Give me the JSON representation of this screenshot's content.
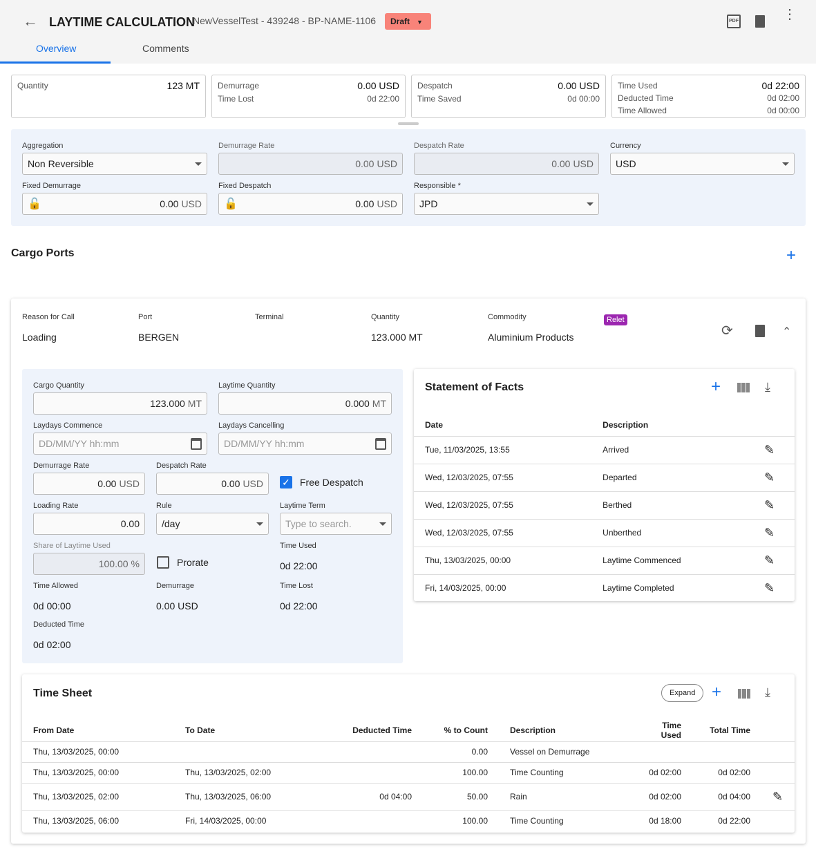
{
  "header": {
    "title": "LAYTIME CALCULATION",
    "subtitle": "NewVesselTest - 439248 - BP-NAME-1106",
    "status": "Draft"
  },
  "tabs": [
    {
      "label": "Overview",
      "active": true
    },
    {
      "label": "Comments"
    }
  ],
  "summary": {
    "quantity": {
      "label": "Quantity",
      "value": "123 MT"
    },
    "demurrage": {
      "label": "Demurrage",
      "value": "0.00 USD",
      "sub_label": "Time Lost",
      "sub_value": "0d 22:00"
    },
    "despatch": {
      "label": "Despatch",
      "value": "0.00 USD",
      "sub_label": "Time Saved",
      "sub_value": "0d 00:00"
    },
    "time": {
      "label": "Time Used",
      "value": "0d 22:00",
      "l2": "Deducted Time",
      "v2": "0d 02:00",
      "l3": "Time Allowed",
      "v3": "0d 00:00"
    }
  },
  "settings": {
    "aggregation_label": "Aggregation",
    "aggregation": "Non Reversible",
    "demurrage_rate_label": "Demurrage Rate",
    "demurrage_rate": "0.00",
    "despatch_rate_label": "Despatch Rate",
    "despatch_rate": "0.00",
    "currency_label": "Currency",
    "currency": "USD",
    "fixed_demurrage_label": "Fixed Demurrage",
    "fixed_demurrage": "0.00",
    "fixed_despatch_label": "Fixed Despatch",
    "fixed_despatch": "0.00",
    "responsible_label": "Responsible *",
    "responsible": "JPD",
    "unit": "USD"
  },
  "cargo_ports": {
    "title": "Cargo Ports",
    "port": {
      "reason_label": "Reason for Call",
      "reason": "Loading",
      "port_label": "Port",
      "port": "BERGEN",
      "terminal_label": "Terminal",
      "quantity_label": "Quantity",
      "quantity": "123.000 MT",
      "commodity_label": "Commodity",
      "commodity": "Aluminium Products",
      "tag": "Relet"
    },
    "form": {
      "cargo_qty_label": "Cargo Quantity",
      "cargo_qty": "123.000",
      "laytime_qty_label": "Laytime Quantity",
      "laytime_qty": "0.000",
      "mt": "MT",
      "usd": "USD",
      "laydays_commence_label": "Laydays Commence",
      "laydays_cancelling_label": "Laydays Cancelling",
      "date_placeholder": "DD/MM/YY hh:mm",
      "dem_rate_label": "Demurrage Rate",
      "dem_rate": "0.00",
      "desp_rate_label": "Despatch Rate",
      "desp_rate": "0.00",
      "free_despatch": "Free Despatch",
      "free_despatch_checked": true,
      "loading_rate_label": "Loading Rate",
      "loading_rate": "0.00",
      "rule_label": "Rule",
      "rule": "/day",
      "laytime_term_label": "Laytime Term",
      "laytime_term_placeholder": "Type to search.",
      "share_label": "Share of Laytime Used",
      "share": "100.00",
      "pct": "%",
      "prorate": "Prorate",
      "prorate_checked": false,
      "time_used_label": "Time Used",
      "time_used": "0d 22:00",
      "time_allowed_label": "Time Allowed",
      "time_allowed": "0d 00:00",
      "demurrage_label": "Demurrage",
      "demurrage": "0.00 USD",
      "time_lost_label": "Time Lost",
      "time_lost": "0d 22:00",
      "deducted_label": "Deducted Time",
      "deducted": "0d 02:00"
    }
  },
  "sof": {
    "title": "Statement of Facts",
    "columns": [
      "Date",
      "Description"
    ],
    "rows": [
      [
        "Tue, 11/03/2025, 13:55",
        "Arrived"
      ],
      [
        "Wed, 12/03/2025, 07:55",
        "Departed"
      ],
      [
        "Wed, 12/03/2025, 07:55",
        "Berthed"
      ],
      [
        "Wed, 12/03/2025, 07:55",
        "Unberthed"
      ],
      [
        "Thu, 13/03/2025, 00:00",
        "Laytime Commenced"
      ],
      [
        "Fri, 14/03/2025, 00:00",
        "Laytime Completed"
      ]
    ]
  },
  "timesheet": {
    "title": "Time Sheet",
    "expand": "Expand",
    "columns": [
      "From Date",
      "To Date",
      "Deducted Time",
      "% to Count",
      "Description",
      "Time Used",
      "Total Time"
    ],
    "rows": [
      [
        "Thu, 13/03/2025, 00:00",
        "",
        "",
        "0.00",
        "Vessel on Demurrage",
        "",
        ""
      ],
      [
        "Thu, 13/03/2025, 00:00",
        "Thu, 13/03/2025, 02:00",
        "",
        "100.00",
        "Time Counting",
        "0d 02:00",
        "0d 02:00"
      ],
      [
        "Thu, 13/03/2025, 02:00",
        "Thu, 13/03/2025, 06:00",
        "0d 04:00",
        "50.00",
        "Rain",
        "0d 02:00",
        "0d 04:00"
      ],
      [
        "Thu, 13/03/2025, 06:00",
        "Fri, 14/03/2025, 00:00",
        "",
        "100.00",
        "Time Counting",
        "0d 18:00",
        "0d 22:00"
      ]
    ]
  },
  "colors": {
    "accent": "#1a73e8",
    "draft": "#f88379",
    "relet": "#9c27b0",
    "panel": "#eef3fb"
  }
}
